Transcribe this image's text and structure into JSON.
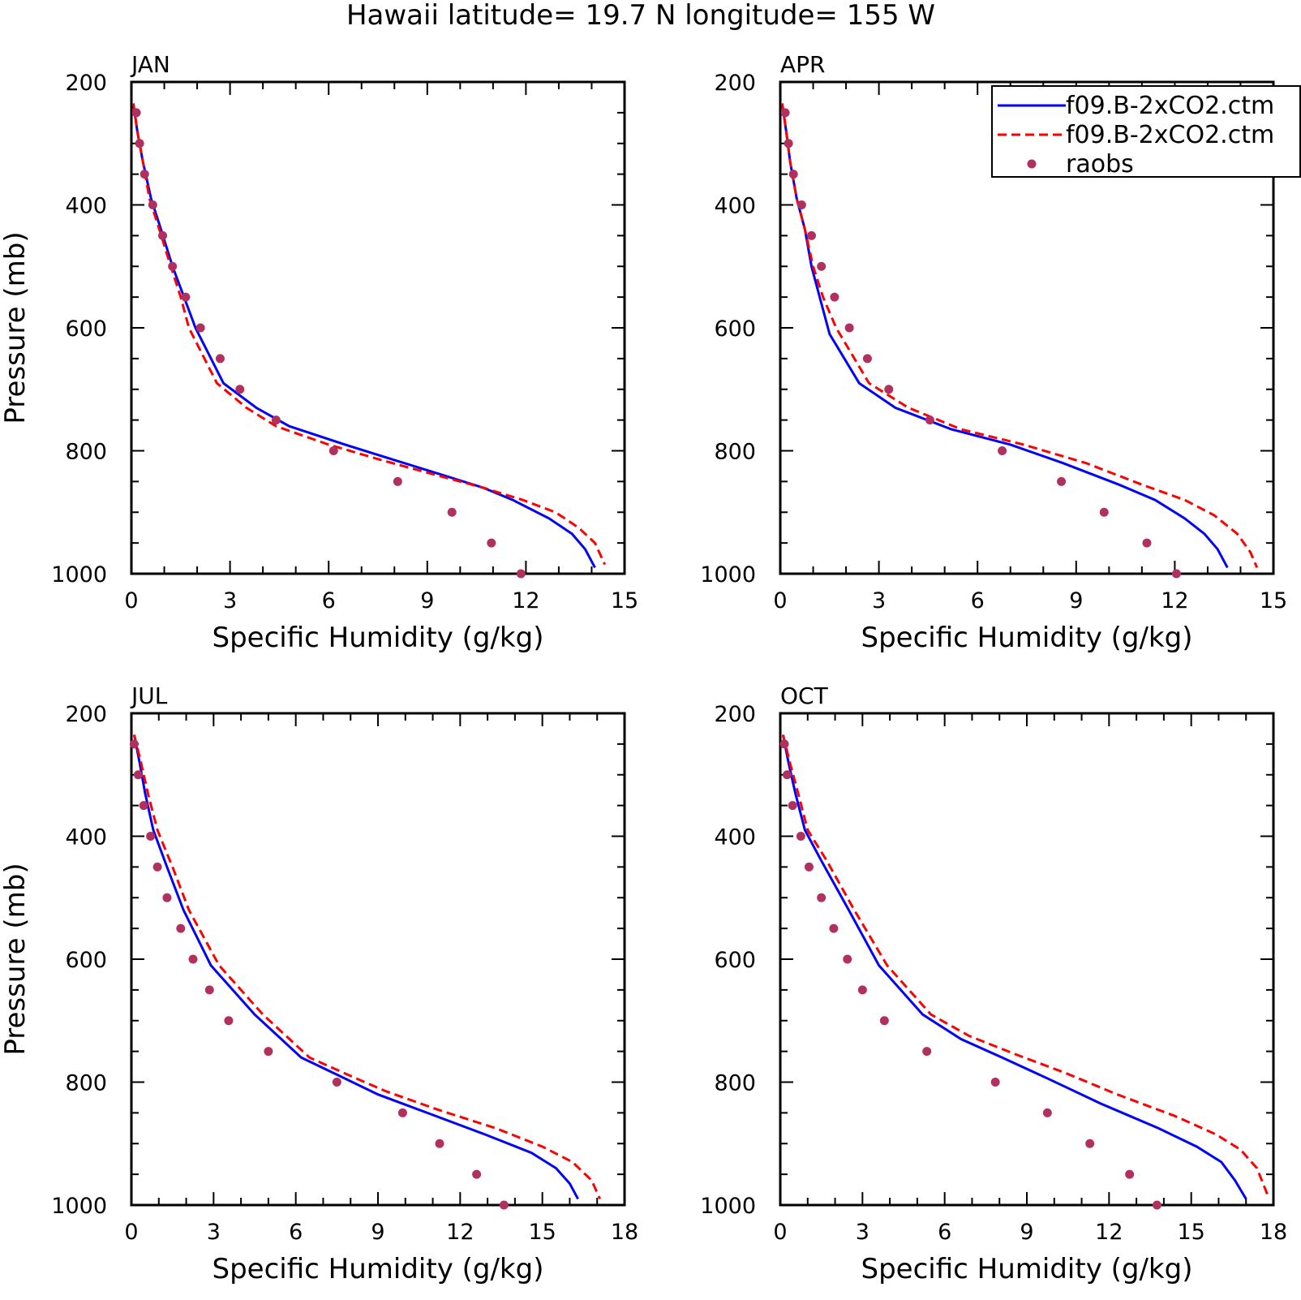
{
  "figure": {
    "title": "Hawaii latitude= 19.7 N longitude= 155 W"
  },
  "colors": {
    "model1": "#0000ff",
    "model2": "#ff0000",
    "raobs": "#b03060"
  },
  "legend": {
    "placement": "top-right of APR panel",
    "entries": [
      {
        "label": "f09.B-2xCO2.ctm",
        "style": "solid",
        "color": "#0000ff"
      },
      {
        "label": "f09.B-2xCO2.ctm",
        "style": "dashed",
        "color": "#ff0000"
      },
      {
        "label": "raobs",
        "style": "marker",
        "color": "#b03060"
      }
    ]
  },
  "chart_data": [
    {
      "type": "line",
      "title": "JAN",
      "xlabel": "Specific Humidity (g/kg)",
      "ylabel": "Pressure (mb)",
      "xlim": [
        0,
        15
      ],
      "ylim": [
        1000,
        200
      ],
      "xticks": [
        "0",
        "3",
        "6",
        "9",
        "12",
        "15"
      ],
      "yticks": [
        "200",
        "400",
        "600",
        "800",
        "1000"
      ],
      "series": [
        {
          "style": "solid",
          "color": "#0000ff",
          "points": [
            [
              0.06,
              235
            ],
            [
              0.18,
              280
            ],
            [
              0.35,
              330
            ],
            [
              0.6,
              390
            ],
            [
              0.9,
              440
            ],
            [
              1.25,
              500
            ],
            [
              1.6,
              550
            ],
            [
              1.95,
              600
            ],
            [
              2.8,
              690
            ],
            [
              3.8,
              730
            ],
            [
              4.8,
              760
            ],
            [
              6.5,
              790
            ],
            [
              8.0,
              815
            ],
            [
              9.5,
              840
            ],
            [
              10.7,
              860
            ],
            [
              11.6,
              880
            ],
            [
              12.7,
              910
            ],
            [
              13.4,
              935
            ],
            [
              13.8,
              960
            ],
            [
              14.1,
              990
            ]
          ]
        },
        {
          "style": "dashed",
          "color": "#ff0000",
          "points": [
            [
              0.06,
              235
            ],
            [
              0.18,
              280
            ],
            [
              0.35,
              330
            ],
            [
              0.55,
              390
            ],
            [
              0.85,
              440
            ],
            [
              1.2,
              500
            ],
            [
              1.5,
              550
            ],
            [
              1.75,
              600
            ],
            [
              2.6,
              690
            ],
            [
              3.5,
              730
            ],
            [
              4.4,
              760
            ],
            [
              6.0,
              790
            ],
            [
              7.6,
              815
            ],
            [
              9.3,
              840
            ],
            [
              10.7,
              860
            ],
            [
              11.9,
              880
            ],
            [
              12.9,
              900
            ],
            [
              13.6,
              925
            ],
            [
              14.1,
              950
            ],
            [
              14.4,
              985
            ]
          ]
        },
        {
          "style": "marker",
          "color": "#b03060",
          "points": [
            [
              0.15,
              250
            ],
            [
              0.25,
              300
            ],
            [
              0.4,
              350
            ],
            [
              0.65,
              400
            ],
            [
              0.95,
              450
            ],
            [
              1.25,
              500
            ],
            [
              1.65,
              550
            ],
            [
              2.1,
              600
            ],
            [
              2.7,
              650
            ],
            [
              3.3,
              700
            ],
            [
              4.4,
              750
            ],
            [
              6.15,
              800
            ],
            [
              8.1,
              850
            ],
            [
              9.75,
              900
            ],
            [
              10.95,
              950
            ],
            [
              11.85,
              1000
            ]
          ]
        }
      ]
    },
    {
      "type": "line",
      "title": "APR",
      "xlabel": "Specific Humidity (g/kg)",
      "ylabel": "",
      "xlim": [
        0,
        15
      ],
      "ylim": [
        1000,
        200
      ],
      "xticks": [
        "0",
        "3",
        "6",
        "9",
        "12",
        "15"
      ],
      "yticks": [
        "200",
        "400",
        "600",
        "800",
        "1000"
      ],
      "series": [
        {
          "style": "solid",
          "color": "#0000ff",
          "points": [
            [
              0.06,
              235
            ],
            [
              0.18,
              280
            ],
            [
              0.3,
              330
            ],
            [
              0.5,
              390
            ],
            [
              0.75,
              440
            ],
            [
              0.95,
              500
            ],
            [
              1.2,
              550
            ],
            [
              1.5,
              610
            ],
            [
              2.4,
              690
            ],
            [
              3.5,
              730
            ],
            [
              5.2,
              765
            ],
            [
              7.0,
              790
            ],
            [
              8.6,
              820
            ],
            [
              10.3,
              855
            ],
            [
              11.4,
              880
            ],
            [
              12.3,
              910
            ],
            [
              12.9,
              935
            ],
            [
              13.3,
              960
            ],
            [
              13.6,
              990
            ]
          ]
        },
        {
          "style": "dashed",
          "color": "#ff0000",
          "points": [
            [
              0.06,
              235
            ],
            [
              0.18,
              280
            ],
            [
              0.3,
              330
            ],
            [
              0.5,
              390
            ],
            [
              0.75,
              440
            ],
            [
              1.0,
              500
            ],
            [
              1.3,
              550
            ],
            [
              1.7,
              600
            ],
            [
              2.7,
              690
            ],
            [
              3.9,
              730
            ],
            [
              5.5,
              765
            ],
            [
              7.4,
              790
            ],
            [
              9.3,
              820
            ],
            [
              11.0,
              855
            ],
            [
              12.3,
              880
            ],
            [
              13.2,
              905
            ],
            [
              13.9,
              935
            ],
            [
              14.3,
              965
            ],
            [
              14.5,
              990
            ]
          ]
        },
        {
          "style": "marker",
          "color": "#b03060",
          "points": [
            [
              0.15,
              250
            ],
            [
              0.25,
              300
            ],
            [
              0.4,
              350
            ],
            [
              0.65,
              400
            ],
            [
              0.95,
              450
            ],
            [
              1.25,
              500
            ],
            [
              1.65,
              550
            ],
            [
              2.1,
              600
            ],
            [
              2.65,
              650
            ],
            [
              3.3,
              700
            ],
            [
              4.55,
              750
            ],
            [
              6.75,
              800
            ],
            [
              8.55,
              850
            ],
            [
              9.85,
              900
            ],
            [
              11.15,
              950
            ],
            [
              12.05,
              1000
            ]
          ]
        }
      ]
    },
    {
      "type": "line",
      "title": "JUL",
      "xlabel": "Specific Humidity (g/kg)",
      "ylabel": "Pressure (mb)",
      "xlim": [
        0,
        18
      ],
      "ylim": [
        1000,
        200
      ],
      "xticks": [
        "0",
        "3",
        "6",
        "9",
        "12",
        "15",
        "18"
      ],
      "yticks": [
        "200",
        "400",
        "600",
        "800",
        "1000"
      ],
      "series": [
        {
          "style": "solid",
          "color": "#0000ff",
          "points": [
            [
              0.1,
              235
            ],
            [
              0.3,
              280
            ],
            [
              0.5,
              330
            ],
            [
              0.8,
              390
            ],
            [
              1.3,
              450
            ],
            [
              1.9,
              520
            ],
            [
              2.9,
              610
            ],
            [
              4.5,
              690
            ],
            [
              6.2,
              760
            ],
            [
              7.6,
              790
            ],
            [
              9.0,
              820
            ],
            [
              10.8,
              850
            ],
            [
              12.9,
              885
            ],
            [
              14.6,
              915
            ],
            [
              15.5,
              940
            ],
            [
              16.0,
              965
            ],
            [
              16.3,
              990
            ]
          ]
        },
        {
          "style": "dashed",
          "color": "#ff0000",
          "points": [
            [
              0.1,
              235
            ],
            [
              0.35,
              280
            ],
            [
              0.6,
              330
            ],
            [
              0.95,
              390
            ],
            [
              1.5,
              450
            ],
            [
              2.1,
              520
            ],
            [
              3.2,
              610
            ],
            [
              4.8,
              690
            ],
            [
              6.5,
              760
            ],
            [
              8.0,
              790
            ],
            [
              9.3,
              815
            ],
            [
              11.2,
              845
            ],
            [
              13.3,
              875
            ],
            [
              15.0,
              905
            ],
            [
              16.1,
              930
            ],
            [
              16.8,
              960
            ],
            [
              17.1,
              990
            ]
          ]
        },
        {
          "style": "marker",
          "color": "#b03060",
          "points": [
            [
              0.1,
              250
            ],
            [
              0.25,
              300
            ],
            [
              0.45,
              350
            ],
            [
              0.7,
              400
            ],
            [
              0.95,
              450
            ],
            [
              1.3,
              500
            ],
            [
              1.8,
              550
            ],
            [
              2.25,
              600
            ],
            [
              2.85,
              650
            ],
            [
              3.55,
              700
            ],
            [
              5.0,
              750
            ],
            [
              7.5,
              800
            ],
            [
              9.9,
              850
            ],
            [
              11.25,
              900
            ],
            [
              12.6,
              950
            ],
            [
              13.6,
              1000
            ]
          ]
        }
      ]
    },
    {
      "type": "line",
      "title": "OCT",
      "xlabel": "Specific Humidity (g/kg)",
      "ylabel": "",
      "xlim": [
        0,
        18
      ],
      "ylim": [
        1000,
        200
      ],
      "xticks": [
        "0",
        "3",
        "6",
        "9",
        "12",
        "15",
        "18"
      ],
      "yticks": [
        "200",
        "400",
        "600",
        "800",
        "1000"
      ],
      "series": [
        {
          "style": "solid",
          "color": "#0000ff",
          "points": [
            [
              0.1,
              235
            ],
            [
              0.3,
              280
            ],
            [
              0.55,
              330
            ],
            [
              0.9,
              390
            ],
            [
              1.5,
              440
            ],
            [
              2.5,
              520
            ],
            [
              3.6,
              610
            ],
            [
              5.2,
              690
            ],
            [
              6.6,
              730
            ],
            [
              8.1,
              760
            ],
            [
              9.8,
              795
            ],
            [
              11.7,
              835
            ],
            [
              13.8,
              875
            ],
            [
              15.2,
              905
            ],
            [
              16.1,
              930
            ],
            [
              16.6,
              960
            ],
            [
              17.0,
              990
            ]
          ]
        },
        {
          "style": "dashed",
          "color": "#ff0000",
          "points": [
            [
              0.1,
              235
            ],
            [
              0.35,
              280
            ],
            [
              0.65,
              330
            ],
            [
              1.0,
              390
            ],
            [
              1.7,
              440
            ],
            [
              2.7,
              520
            ],
            [
              3.9,
              610
            ],
            [
              5.5,
              690
            ],
            [
              6.9,
              725
            ],
            [
              8.6,
              755
            ],
            [
              10.4,
              785
            ],
            [
              12.3,
              820
            ],
            [
              14.4,
              855
            ],
            [
              15.9,
              885
            ],
            [
              16.8,
              910
            ],
            [
              17.4,
              940
            ],
            [
              17.8,
              985
            ]
          ]
        },
        {
          "style": "marker",
          "color": "#b03060",
          "points": [
            [
              0.15,
              250
            ],
            [
              0.25,
              300
            ],
            [
              0.45,
              350
            ],
            [
              0.75,
              400
            ],
            [
              1.05,
              450
            ],
            [
              1.5,
              500
            ],
            [
              1.95,
              550
            ],
            [
              2.45,
              600
            ],
            [
              3.0,
              650
            ],
            [
              3.8,
              700
            ],
            [
              5.35,
              750
            ],
            [
              7.85,
              800
            ],
            [
              9.75,
              850
            ],
            [
              11.3,
              900
            ],
            [
              12.75,
              950
            ],
            [
              13.75,
              1000
            ]
          ]
        }
      ]
    }
  ]
}
